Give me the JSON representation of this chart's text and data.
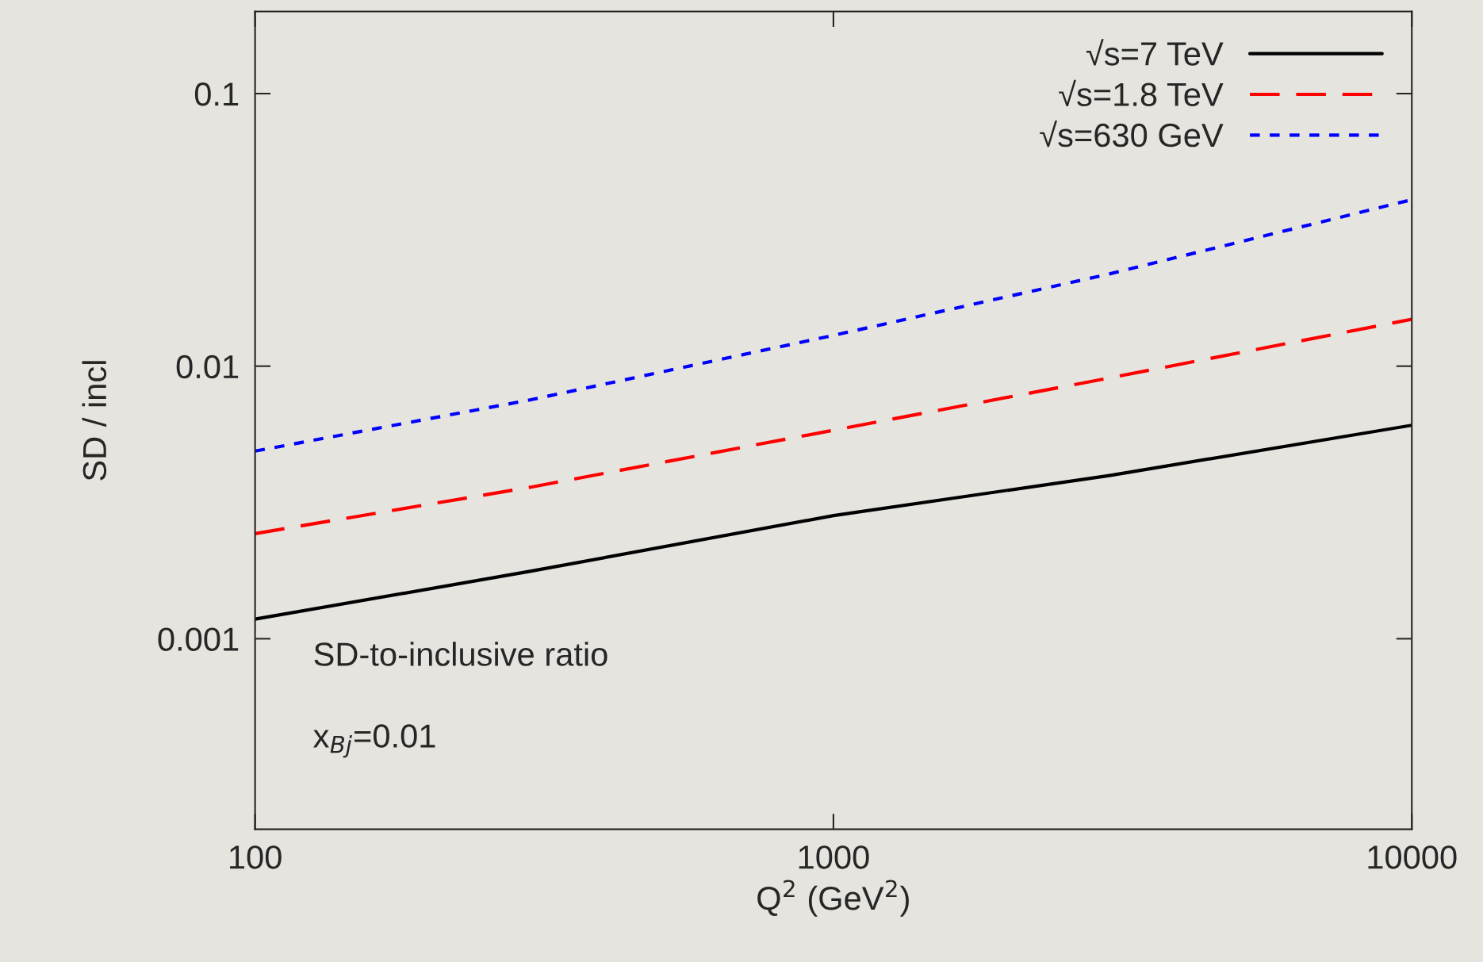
{
  "chart_data": {
    "type": "line",
    "xlabel": "Q$^{2}$ (GeV$^{2}$)",
    "ylabel": "SD / incl",
    "log": "xy",
    "xlim": [
      100,
      10000
    ],
    "ylim": [
      0.0002,
      0.2
    ],
    "xticks": [
      100,
      1000,
      10000
    ],
    "yticks": [
      0.001,
      0.01,
      0.1
    ],
    "x": [
      100,
      300,
      1000,
      3000,
      10000
    ],
    "legend": "top right",
    "grid": false,
    "series": [
      {
        "name": "√s=7 TeV",
        "color": "#000000",
        "line_style": "solid",
        "values": [
          0.00118,
          0.00177,
          0.00283,
          0.00397,
          0.00607
        ]
      },
      {
        "name": "√s=1.8 TeV",
        "color": "#ff0000",
        "line_style": "dashed",
        "values": [
          0.00243,
          0.0036,
          0.00582,
          0.00905,
          0.01486
        ]
      },
      {
        "name": "√s=630 GeV",
        "color": "#0000ff",
        "line_style": "dotted",
        "values": [
          0.00488,
          0.00753,
          0.01297,
          0.0218,
          0.0408
        ]
      }
    ],
    "annotations": [
      "SD-to-inclusive ratio",
      "x$_{Bj}$=0.01"
    ]
  }
}
